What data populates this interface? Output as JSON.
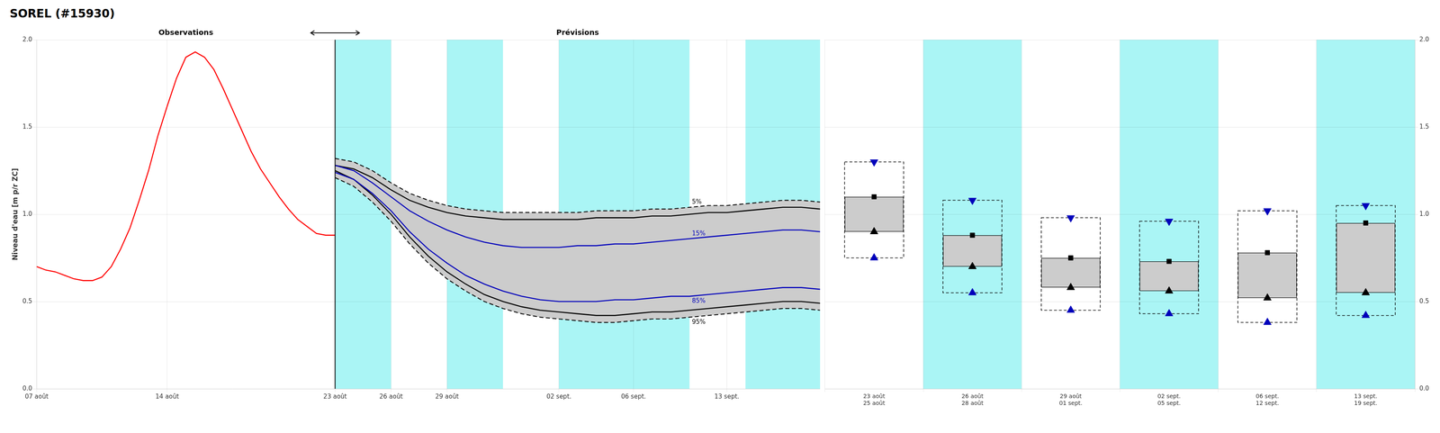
{
  "chart_data": [
    {
      "type": "line",
      "title": "SOREL (#15930)",
      "ylabel": "Niveau d'eau [m p/r ZC]",
      "xlim": [
        0,
        42
      ],
      "xticks": [
        {
          "value": 0,
          "label": "07 août"
        },
        {
          "value": 7,
          "label": "14 août"
        },
        {
          "value": 16,
          "label": "23 août"
        },
        {
          "value": 19,
          "label": "26 août"
        },
        {
          "value": 22,
          "label": "29 août"
        },
        {
          "value": 28,
          "label": "02 sept."
        },
        {
          "value": 32,
          "label": "06 sept."
        },
        {
          "value": 37,
          "label": "13 sept."
        }
      ],
      "ylim": [
        0.0,
        2.0
      ],
      "yticks": [
        {
          "value": 0.0,
          "label": "0.0"
        },
        0.5,
        {
          "value": 1.0,
          "label": "1.0"
        },
        1.5,
        {
          "value": 2.0,
          "label": "2.0"
        }
      ],
      "grid": true,
      "annotations": [
        "Observations",
        "Prévisions"
      ],
      "forecast_start": 16,
      "bands": [
        [
          16,
          19
        ],
        [
          22,
          25
        ],
        [
          28,
          35
        ],
        [
          38,
          42
        ]
      ],
      "band_color": "#aaf5f5",
      "fill_between": [
        "5%",
        "95%"
      ],
      "fill_color": "#cccccc",
      "series": [
        {
          "color": "#ff0000",
          "line_style": "solid",
          "x": [
            0,
            0.5,
            1,
            1.5,
            2,
            2.5,
            3,
            3.5,
            4,
            4.5,
            5,
            5.5,
            6,
            6.5,
            7,
            7.5,
            8,
            8.5,
            9,
            9.5,
            10,
            10.5,
            11,
            11.5,
            12,
            12.5,
            13,
            13.5,
            14,
            14.5,
            15,
            15.5,
            16
          ],
          "values": [
            0.7,
            0.68,
            0.67,
            0.65,
            0.63,
            0.62,
            0.62,
            0.64,
            0.7,
            0.8,
            0.92,
            1.08,
            1.25,
            1.45,
            1.62,
            1.78,
            1.9,
            1.93,
            1.9,
            1.83,
            1.72,
            1.6,
            1.48,
            1.36,
            1.26,
            1.18,
            1.1,
            1.03,
            0.97,
            0.93,
            0.89,
            0.88,
            0.88
          ]
        },
        {
          "name": "5%",
          "color": "#000000",
          "line_style": "dashed",
          "x": [
            16,
            17,
            18,
            19,
            20,
            21,
            22,
            23,
            24,
            25,
            26,
            27,
            28,
            29,
            30,
            31,
            32,
            33,
            34,
            35,
            36,
            37,
            38,
            39,
            40,
            41,
            42
          ],
          "values": [
            1.32,
            1.3,
            1.25,
            1.18,
            1.12,
            1.08,
            1.05,
            1.03,
            1.02,
            1.01,
            1.01,
            1.01,
            1.01,
            1.01,
            1.02,
            1.02,
            1.02,
            1.03,
            1.03,
            1.04,
            1.05,
            1.05,
            1.06,
            1.07,
            1.08,
            1.08,
            1.07
          ]
        },
        {
          "name": "15%",
          "color": "#0000bb",
          "line_style": "solid",
          "x": [
            16,
            17,
            18,
            19,
            20,
            21,
            22,
            23,
            24,
            25,
            26,
            27,
            28,
            29,
            30,
            31,
            32,
            33,
            34,
            35,
            36,
            37,
            38,
            39,
            40,
            41,
            42
          ],
          "values": [
            1.28,
            1.25,
            1.18,
            1.1,
            1.02,
            0.96,
            0.91,
            0.87,
            0.84,
            0.82,
            0.81,
            0.81,
            0.81,
            0.82,
            0.82,
            0.83,
            0.83,
            0.84,
            0.85,
            0.86,
            0.87,
            0.88,
            0.89,
            0.9,
            0.91,
            0.91,
            0.9
          ]
        },
        {
          "name": "85%",
          "color": "#0000bb",
          "line_style": "solid",
          "x": [
            16,
            17,
            18,
            19,
            20,
            21,
            22,
            23,
            24,
            25,
            26,
            27,
            28,
            29,
            30,
            31,
            32,
            33,
            34,
            35,
            36,
            37,
            38,
            39,
            40,
            41,
            42
          ],
          "values": [
            1.24,
            1.2,
            1.12,
            1.02,
            0.9,
            0.8,
            0.72,
            0.65,
            0.6,
            0.56,
            0.53,
            0.51,
            0.5,
            0.5,
            0.5,
            0.51,
            0.51,
            0.52,
            0.53,
            0.53,
            0.54,
            0.55,
            0.56,
            0.57,
            0.58,
            0.58,
            0.57
          ]
        },
        {
          "name": "95%",
          "color": "#000000",
          "line_style": "dashed",
          "x": [
            16,
            17,
            18,
            19,
            20,
            21,
            22,
            23,
            24,
            25,
            26,
            27,
            28,
            29,
            30,
            31,
            32,
            33,
            34,
            35,
            36,
            37,
            38,
            39,
            40,
            41,
            42
          ],
          "values": [
            1.21,
            1.16,
            1.07,
            0.96,
            0.83,
            0.72,
            0.63,
            0.56,
            0.5,
            0.46,
            0.43,
            0.41,
            0.4,
            0.39,
            0.38,
            0.38,
            0.39,
            0.4,
            0.4,
            0.41,
            0.42,
            0.43,
            0.44,
            0.45,
            0.46,
            0.46,
            0.45
          ]
        },
        {
          "color": "#000000",
          "line_style": "solid",
          "x": [
            16,
            17,
            18,
            19,
            20,
            21,
            22,
            23,
            24,
            25,
            26,
            27,
            28,
            29,
            30,
            31,
            32,
            33,
            34,
            35,
            36,
            37,
            38,
            39,
            40,
            41,
            42
          ],
          "values": [
            1.28,
            1.26,
            1.21,
            1.14,
            1.08,
            1.04,
            1.01,
            0.99,
            0.98,
            0.97,
            0.97,
            0.97,
            0.97,
            0.97,
            0.98,
            0.98,
            0.98,
            0.99,
            0.99,
            1.0,
            1.01,
            1.01,
            1.02,
            1.03,
            1.04,
            1.04,
            1.03
          ]
        },
        {
          "color": "#000000",
          "line_style": "solid",
          "x": [
            16,
            17,
            18,
            19,
            20,
            21,
            22,
            23,
            24,
            25,
            26,
            27,
            28,
            29,
            30,
            31,
            32,
            33,
            34,
            35,
            36,
            37,
            38,
            39,
            40,
            41,
            42
          ],
          "values": [
            1.25,
            1.2,
            1.11,
            1.0,
            0.87,
            0.76,
            0.67,
            0.6,
            0.54,
            0.5,
            0.47,
            0.45,
            0.44,
            0.43,
            0.42,
            0.42,
            0.43,
            0.44,
            0.44,
            0.45,
            0.46,
            0.47,
            0.48,
            0.49,
            0.5,
            0.5,
            0.49
          ]
        }
      ]
    },
    {
      "type": "box",
      "categories": [
        "23 août",
        "26 août",
        "29 août",
        "02 sept.",
        "06 sept.",
        "13 sept."
      ],
      "category_sublabels": [
        "25 août",
        "28 août",
        "01 sept.",
        "05 sept.",
        "12 sept.",
        "19 sept."
      ],
      "highlight": [
        false,
        true,
        false,
        true,
        false,
        true
      ],
      "highlight_color": "#aaf5f5",
      "fill_color": "#cccccc",
      "ylim": [
        0.0,
        2.0
      ],
      "yticks": [
        {
          "value": 0.0,
          "label": "0.0"
        },
        0.5,
        {
          "value": 1.0,
          "label": "1.0"
        },
        1.5,
        {
          "value": 2.0,
          "label": "2.0"
        }
      ],
      "grid": true,
      "series": [
        {
          "color": "#0000bb",
          "marker": "triangle-down",
          "values": [
            1.3,
            1.08,
            0.98,
            0.96,
            1.02,
            1.05
          ]
        },
        {
          "color": "#000000",
          "marker": "square",
          "values": [
            1.1,
            0.88,
            0.75,
            0.73,
            0.78,
            0.95
          ]
        },
        {
          "color": "#000000",
          "marker": "triangle-up",
          "values": [
            0.9,
            0.7,
            0.58,
            0.56,
            0.52,
            0.55
          ]
        },
        {
          "color": "#0000bb",
          "marker": "triangle-up",
          "values": [
            0.75,
            0.55,
            0.45,
            0.43,
            0.38,
            0.42
          ]
        }
      ]
    }
  ]
}
